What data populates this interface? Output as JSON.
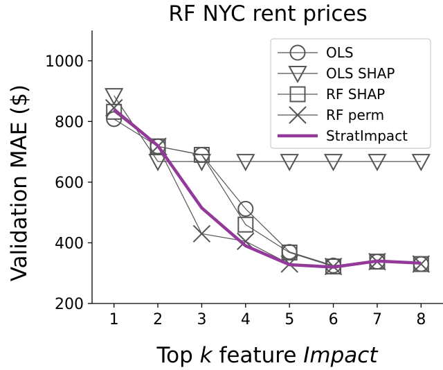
{
  "chart_data": {
    "type": "line",
    "title": "RF NYC rent prices",
    "ylabel": "Validation MAE ($)",
    "xlabel_parts": [
      {
        "text": "Top ",
        "italic": false
      },
      {
        "text": "k",
        "italic": true
      },
      {
        "text": " feature ",
        "italic": false
      },
      {
        "text": "Impact",
        "italic": true
      }
    ],
    "x": [
      1,
      2,
      3,
      4,
      5,
      6,
      7,
      8
    ],
    "xticks": [
      "1",
      "2",
      "3",
      "4",
      "5",
      "6",
      "7",
      "8"
    ],
    "yticks": [
      200,
      400,
      600,
      800,
      1000
    ],
    "ytick_labels": [
      "200",
      "400",
      "600",
      "800",
      "1000"
    ],
    "ylim": [
      200,
      1100
    ],
    "xlim": [
      0.5,
      8.5
    ],
    "grid": false,
    "legend_position": "top-right",
    "series": [
      {
        "name": "OLS",
        "marker": "circle",
        "color": "#555555",
        "values": [
          808,
          718,
          690,
          512,
          370,
          325,
          338,
          330
        ]
      },
      {
        "name": "OLS SHAP",
        "marker": "triangle-down",
        "color": "#555555",
        "values": [
          885,
          668,
          668,
          668,
          668,
          668,
          668,
          668
        ]
      },
      {
        "name": "RF SHAP",
        "marker": "square",
        "color": "#555555",
        "values": [
          832,
          718,
          690,
          460,
          368,
          322,
          338,
          330
        ]
      },
      {
        "name": "RF perm",
        "marker": "x",
        "color": "#555555",
        "values": [
          845,
          718,
          430,
          405,
          330,
          322,
          338,
          330
        ]
      },
      {
        "name": "StratImpact",
        "marker": "none",
        "color": "#93399a",
        "values": [
          840,
          720,
          515,
          390,
          328,
          320,
          340,
          333
        ]
      }
    ]
  }
}
